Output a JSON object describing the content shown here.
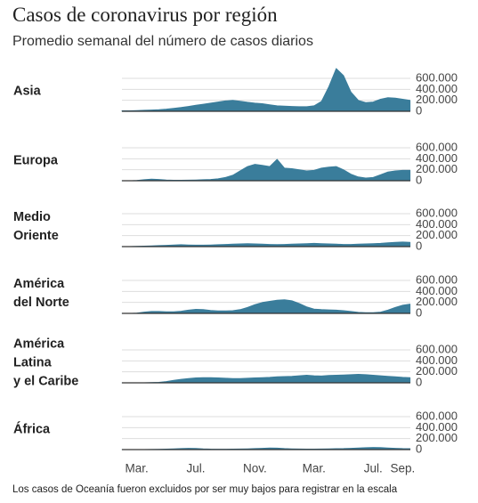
{
  "chart_data": {
    "type": "area",
    "title": "Casos de coronavirus por región",
    "subtitle": "Promedio semanal del número de casos diarios",
    "note": "Los casos de Oceanía fueron excluidos por ser muy bajos para registrar en la escala",
    "color": "#3a7d9b",
    "ylim": [
      0,
      600000
    ],
    "yticks": [
      0,
      {
        "value": 200000,
        "label": "200.000"
      },
      {
        "value": 400000,
        "label": "400.000"
      },
      {
        "value": 600000,
        "label": "600.000"
      }
    ],
    "grid": true,
    "categories": [
      null,
      null,
      "Mar.",
      null,
      null,
      null,
      null,
      null,
      null,
      null,
      "Jul.",
      null,
      null,
      null,
      null,
      null,
      null,
      null,
      "Nov.",
      null,
      null,
      null,
      null,
      null,
      null,
      null,
      "Mar.",
      null,
      null,
      null,
      null,
      null,
      null,
      null,
      "Jul.",
      null,
      null,
      null,
      "Sep.",
      null
    ],
    "series": [
      {
        "name": "Asia",
        "values": [
          10000,
          10000,
          15000,
          20000,
          25000,
          30000,
          40000,
          55000,
          70000,
          90000,
          110000,
          130000,
          150000,
          170000,
          190000,
          200000,
          185000,
          165000,
          150000,
          140000,
          120000,
          100000,
          95000,
          90000,
          85000,
          85000,
          100000,
          180000,
          450000,
          780000,
          650000,
          350000,
          200000,
          160000,
          170000,
          220000,
          250000,
          240000,
          220000,
          200000
        ]
      },
      {
        "name": "Europa",
        "values": [
          0,
          0,
          5000,
          20000,
          30000,
          25000,
          15000,
          10000,
          10000,
          12000,
          15000,
          20000,
          25000,
          35000,
          60000,
          100000,
          180000,
          260000,
          300000,
          280000,
          260000,
          390000,
          230000,
          220000,
          200000,
          180000,
          190000,
          230000,
          250000,
          260000,
          200000,
          120000,
          70000,
          50000,
          60000,
          110000,
          160000,
          180000,
          190000,
          190000
        ]
      },
      {
        "name": "Medio\nOriente",
        "values": [
          0,
          2000,
          5000,
          10000,
          15000,
          20000,
          25000,
          30000,
          35000,
          30000,
          28000,
          28000,
          30000,
          35000,
          40000,
          45000,
          50000,
          55000,
          50000,
          45000,
          40000,
          38000,
          40000,
          45000,
          50000,
          55000,
          60000,
          55000,
          50000,
          45000,
          40000,
          40000,
          45000,
          50000,
          55000,
          60000,
          70000,
          80000,
          85000,
          80000
        ]
      },
      {
        "name": "América\ndel Norte",
        "values": [
          0,
          0,
          5000,
          25000,
          35000,
          35000,
          30000,
          30000,
          40000,
          60000,
          75000,
          70000,
          55000,
          45000,
          45000,
          50000,
          70000,
          110000,
          160000,
          200000,
          220000,
          240000,
          250000,
          230000,
          180000,
          120000,
          80000,
          70000,
          65000,
          60000,
          50000,
          35000,
          20000,
          15000,
          15000,
          25000,
          60000,
          110000,
          150000,
          170000
        ]
      },
      {
        "name": "América\nLatina\ny el Caribe",
        "values": [
          0,
          0,
          0,
          2000,
          5000,
          10000,
          25000,
          45000,
          65000,
          80000,
          90000,
          95000,
          95000,
          90000,
          85000,
          80000,
          80000,
          85000,
          90000,
          95000,
          100000,
          110000,
          115000,
          120000,
          130000,
          140000,
          130000,
          125000,
          135000,
          140000,
          145000,
          150000,
          155000,
          150000,
          140000,
          130000,
          120000,
          110000,
          100000,
          95000
        ]
      },
      {
        "name": "África",
        "values": [
          0,
          0,
          1000,
          2000,
          4000,
          6000,
          10000,
          15000,
          20000,
          25000,
          22000,
          15000,
          10000,
          8000,
          8000,
          10000,
          12000,
          15000,
          20000,
          25000,
          30000,
          28000,
          20000,
          15000,
          12000,
          10000,
          10000,
          12000,
          15000,
          18000,
          20000,
          25000,
          30000,
          35000,
          40000,
          38000,
          30000,
          25000,
          20000,
          18000
        ]
      }
    ]
  }
}
